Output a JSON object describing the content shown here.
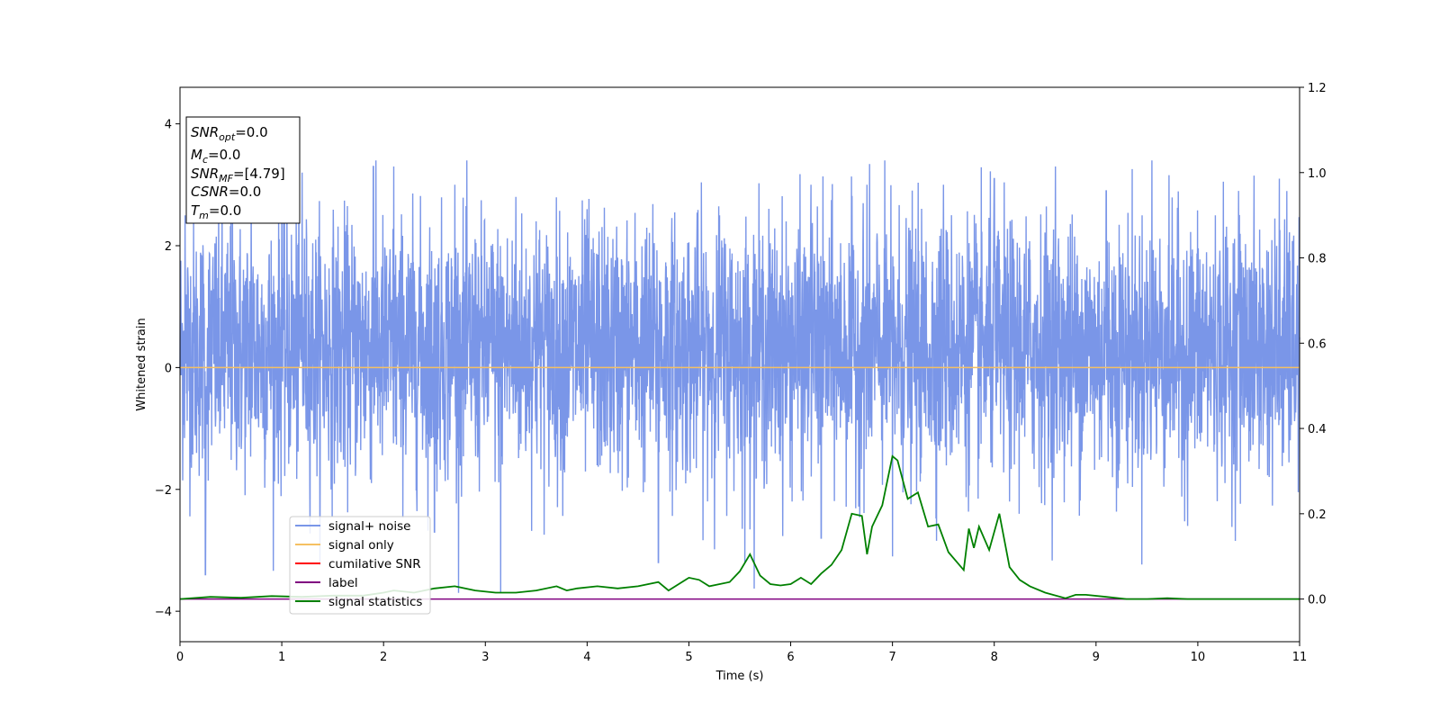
{
  "chart_data": {
    "type": "line",
    "xlabel": "Time (s)",
    "ylabel": "Whitened strain",
    "xlim": [
      0,
      11
    ],
    "ylim": [
      -4.5,
      4.6
    ],
    "y2lim": [
      -0.1,
      1.2
    ],
    "xticks": [
      "0",
      "1",
      "2",
      "3",
      "4",
      "5",
      "6",
      "7",
      "8",
      "9",
      "10",
      "11"
    ],
    "yticks": [
      "−4",
      "−2",
      "0",
      "2",
      "4"
    ],
    "y2ticks": [
      "0.0",
      "0.2",
      "0.4",
      "0.6",
      "0.8",
      "1.0",
      "1.2"
    ],
    "grid": false,
    "legend_position": "lower-left",
    "legend": [
      "signal+ noise",
      "signal only",
      "cumilative SNR",
      "label",
      "signal statistics"
    ],
    "colors": {
      "noise": "#7a96e8",
      "signal": "#f5c062",
      "cumulative": "#ff0000",
      "label": "#800080",
      "statistics": "#008000"
    },
    "info_box": {
      "snr_opt": {
        "name": "SNR",
        "sub": "opt",
        "value": "=0.0"
      },
      "mc": {
        "name": "M",
        "sub": "c",
        "value": "=0.0"
      },
      "snr_mf": {
        "name": "SNR",
        "sub": "MF",
        "value": "=[4.79]"
      },
      "csnr": {
        "name": "CSNR",
        "value": "=0.0"
      },
      "tm": {
        "name": "T",
        "sub": "m",
        "value": "=0.0"
      }
    },
    "noise": {
      "description_free": true,
      "envelope_typical_max": 2.2,
      "envelope_typical_min": -1.6,
      "peaks": [
        [
          0.05,
          2.5
        ],
        [
          0.25,
          -3.4
        ],
        [
          0.5,
          2.6
        ],
        [
          0.7,
          3.0
        ],
        [
          1.0,
          2.8
        ],
        [
          1.2,
          3.2
        ],
        [
          1.9,
          3.3
        ],
        [
          2.1,
          3.3
        ],
        [
          2.5,
          -2.7
        ],
        [
          2.7,
          3.0
        ],
        [
          3.15,
          -3.7
        ],
        [
          3.3,
          2.8
        ],
        [
          3.5,
          2.4
        ],
        [
          4.0,
          2.6
        ],
        [
          4.7,
          -3.2
        ],
        [
          5.3,
          2.5
        ],
        [
          5.55,
          -3.2
        ],
        [
          6.2,
          3.0
        ],
        [
          6.3,
          -2.8
        ],
        [
          6.75,
          3.0
        ],
        [
          7.0,
          -3.1
        ],
        [
          7.5,
          3.0
        ],
        [
          8.0,
          3.1
        ],
        [
          8.6,
          3.3
        ],
        [
          9.1,
          2.9
        ],
        [
          9.55,
          3.4
        ],
        [
          9.9,
          -2.6
        ],
        [
          10.4,
          2.9
        ],
        [
          10.8,
          3.1
        ]
      ]
    },
    "signal_only": {
      "x": [
        0,
        11
      ],
      "y": [
        0,
        0
      ]
    },
    "label_series": {
      "x": [
        0,
        11
      ],
      "y": [
        0,
        0
      ]
    },
    "signal_statistics": {
      "x": [
        0,
        0.3,
        0.6,
        0.9,
        1.2,
        1.5,
        1.8,
        2.0,
        2.1,
        2.3,
        2.5,
        2.7,
        2.9,
        3.1,
        3.3,
        3.5,
        3.7,
        3.8,
        3.9,
        4.1,
        4.3,
        4.5,
        4.7,
        4.8,
        5.0,
        5.1,
        5.2,
        5.4,
        5.5,
        5.6,
        5.7,
        5.8,
        5.9,
        6.0,
        6.1,
        6.2,
        6.3,
        6.4,
        6.5,
        6.6,
        6.7,
        6.75,
        6.8,
        6.9,
        7.0,
        7.05,
        7.15,
        7.25,
        7.35,
        7.45,
        7.55,
        7.7,
        7.75,
        7.8,
        7.85,
        7.95,
        8.05,
        8.15,
        8.25,
        8.35,
        8.5,
        8.7,
        8.8,
        8.9,
        9.1,
        9.3,
        9.5,
        9.7,
        9.9,
        10.2,
        10.6,
        11.0
      ],
      "y": [
        0.0,
        0.005,
        0.003,
        0.007,
        0.005,
        0.008,
        0.008,
        0.015,
        0.02,
        0.015,
        0.025,
        0.03,
        0.02,
        0.015,
        0.015,
        0.02,
        0.03,
        0.02,
        0.025,
        0.03,
        0.025,
        0.03,
        0.04,
        0.02,
        0.05,
        0.045,
        0.03,
        0.04,
        0.065,
        0.105,
        0.055,
        0.035,
        0.032,
        0.035,
        0.05,
        0.035,
        0.06,
        0.08,
        0.115,
        0.2,
        0.195,
        0.105,
        0.17,
        0.22,
        0.335,
        0.325,
        0.235,
        0.25,
        0.17,
        0.175,
        0.11,
        0.068,
        0.165,
        0.12,
        0.17,
        0.115,
        0.2,
        0.075,
        0.045,
        0.03,
        0.015,
        0.002,
        0.01,
        0.01,
        0.005,
        0.0,
        0.0,
        0.002,
        0.0,
        0.0,
        0.0,
        0.0
      ]
    }
  }
}
